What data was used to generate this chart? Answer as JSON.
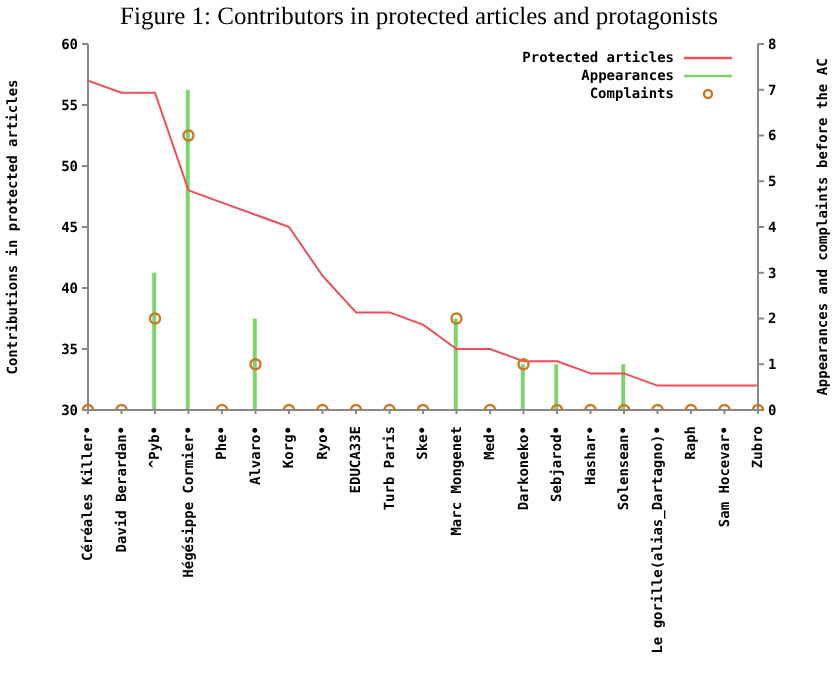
{
  "chart_data": {
    "type": "line",
    "title": "Figure 1: Contributors in protected articles and protagonists",
    "ylabel": "Contributions in protected articles",
    "y2label": "Appearances and complaints before the AC",
    "categories": [
      "Céréales Killer•",
      "David Berardan•",
      "^Pyb•",
      "Hégésippe Cormier•",
      "Phe•",
      "Alvaro•",
      "Korg•",
      "Ryo•",
      "EDUCA33E",
      "Turb Paris",
      "Ske•",
      "Marc Mongenet",
      "Med•",
      "Darkoneko•",
      "Sebjarod•",
      "Hashar•",
      "Solensean•",
      "Le gorille(alias_Dartagno)•",
      "Raph",
      "Sam Hocevar•",
      "Zubro"
    ],
    "series": [
      {
        "name": "Protected articles",
        "color": "#e8505a",
        "values": [
          57,
          56,
          56,
          48,
          47,
          46,
          45,
          41,
          38,
          38,
          37,
          35,
          35,
          34,
          34,
          33,
          33,
          32,
          32,
          32,
          32
        ]
      },
      {
        "name": "Appearances",
        "type": "bar",
        "axis": "y2",
        "color": "#7fd36f",
        "values": [
          0,
          0,
          3,
          7,
          0,
          2,
          0,
          0,
          0,
          0,
          0,
          2,
          0,
          1,
          1,
          0,
          1,
          0,
          0,
          0,
          0
        ]
      },
      {
        "name": "Complaints",
        "type": "scatter",
        "axis": "y2",
        "color": "#c87a28",
        "marker": "circle",
        "values": [
          0,
          0,
          2,
          6,
          0,
          1,
          0,
          0,
          0,
          0,
          0,
          2,
          0,
          1,
          0,
          0,
          0,
          0,
          0,
          0,
          0
        ]
      }
    ],
    "ylim": [
      30,
      60
    ],
    "yticks": [
      30,
      35,
      40,
      45,
      50,
      55,
      60
    ],
    "y2lim": [
      0,
      8
    ],
    "y2ticks": [
      0,
      1,
      2,
      3,
      4,
      5,
      6,
      7,
      8
    ],
    "legend": "top right"
  }
}
